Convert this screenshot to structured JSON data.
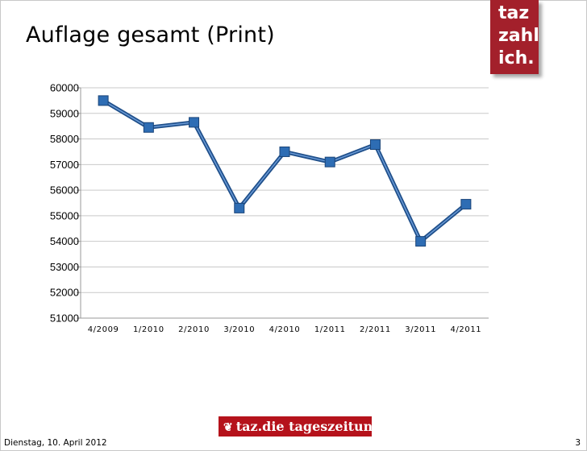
{
  "slide": {
    "title": "Auflage gesamt (Print)",
    "footer_date": "Dienstag, 10. April 2012",
    "page_number": "3"
  },
  "brand": {
    "badge_lines": [
      "taz",
      "zahl",
      "ich."
    ],
    "badge_color": "#a3202b",
    "footer_logo_text": "taz.die tageszeitung",
    "footer_logo_color": "#b5121b",
    "footer_logo_icon": "paw-icon"
  },
  "chart_data": {
    "type": "line",
    "title": "",
    "xlabel": "",
    "ylabel": "",
    "categories": [
      "4/2009",
      "1/2010",
      "2/2010",
      "3/2010",
      "4/2010",
      "1/2011",
      "2/2011",
      "3/2011",
      "4/2011"
    ],
    "series": [
      {
        "values": [
          59500,
          58450,
          58650,
          55300,
          57500,
          57100,
          57780,
          54000,
          55450
        ],
        "color": "#2e6db4",
        "marker": "square"
      }
    ],
    "yticks": [
      51000,
      52000,
      53000,
      54000,
      55000,
      56000,
      57000,
      58000,
      59000,
      60000
    ],
    "ylim": [
      51000,
      60000
    ],
    "grid": true,
    "legend": "none"
  }
}
